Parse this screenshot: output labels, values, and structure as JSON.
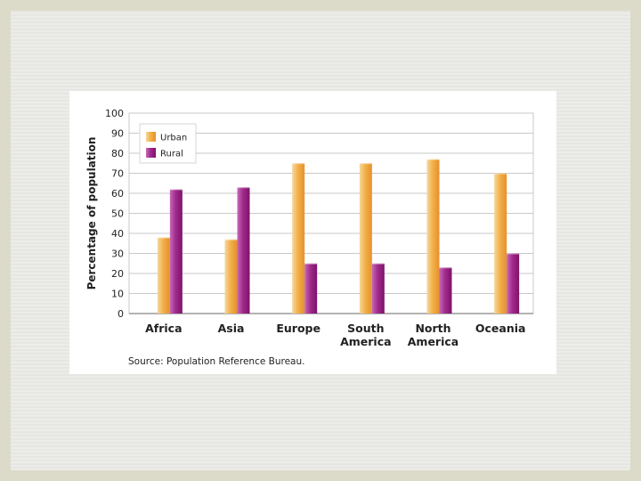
{
  "chart_data": {
    "type": "bar",
    "categories": [
      [
        "Africa"
      ],
      [
        "Asia"
      ],
      [
        "Europe"
      ],
      [
        "South",
        "America"
      ],
      [
        "North",
        "America"
      ],
      [
        "Oceania"
      ]
    ],
    "series": [
      {
        "name": "Urban",
        "color": "#f0a53b",
        "values": [
          38,
          37,
          75,
          75,
          77,
          70
        ]
      },
      {
        "name": "Rural",
        "color": "#9b1f86",
        "values": [
          62,
          63,
          25,
          25,
          23,
          30
        ]
      }
    ],
    "ylabel": "Percentage of population",
    "ylim": [
      0,
      100
    ],
    "yticks": [
      0,
      10,
      20,
      30,
      40,
      50,
      60,
      70,
      80,
      90,
      100
    ],
    "grid": true,
    "legend": "top-left"
  },
  "source": "Source: Population Reference Bureau."
}
